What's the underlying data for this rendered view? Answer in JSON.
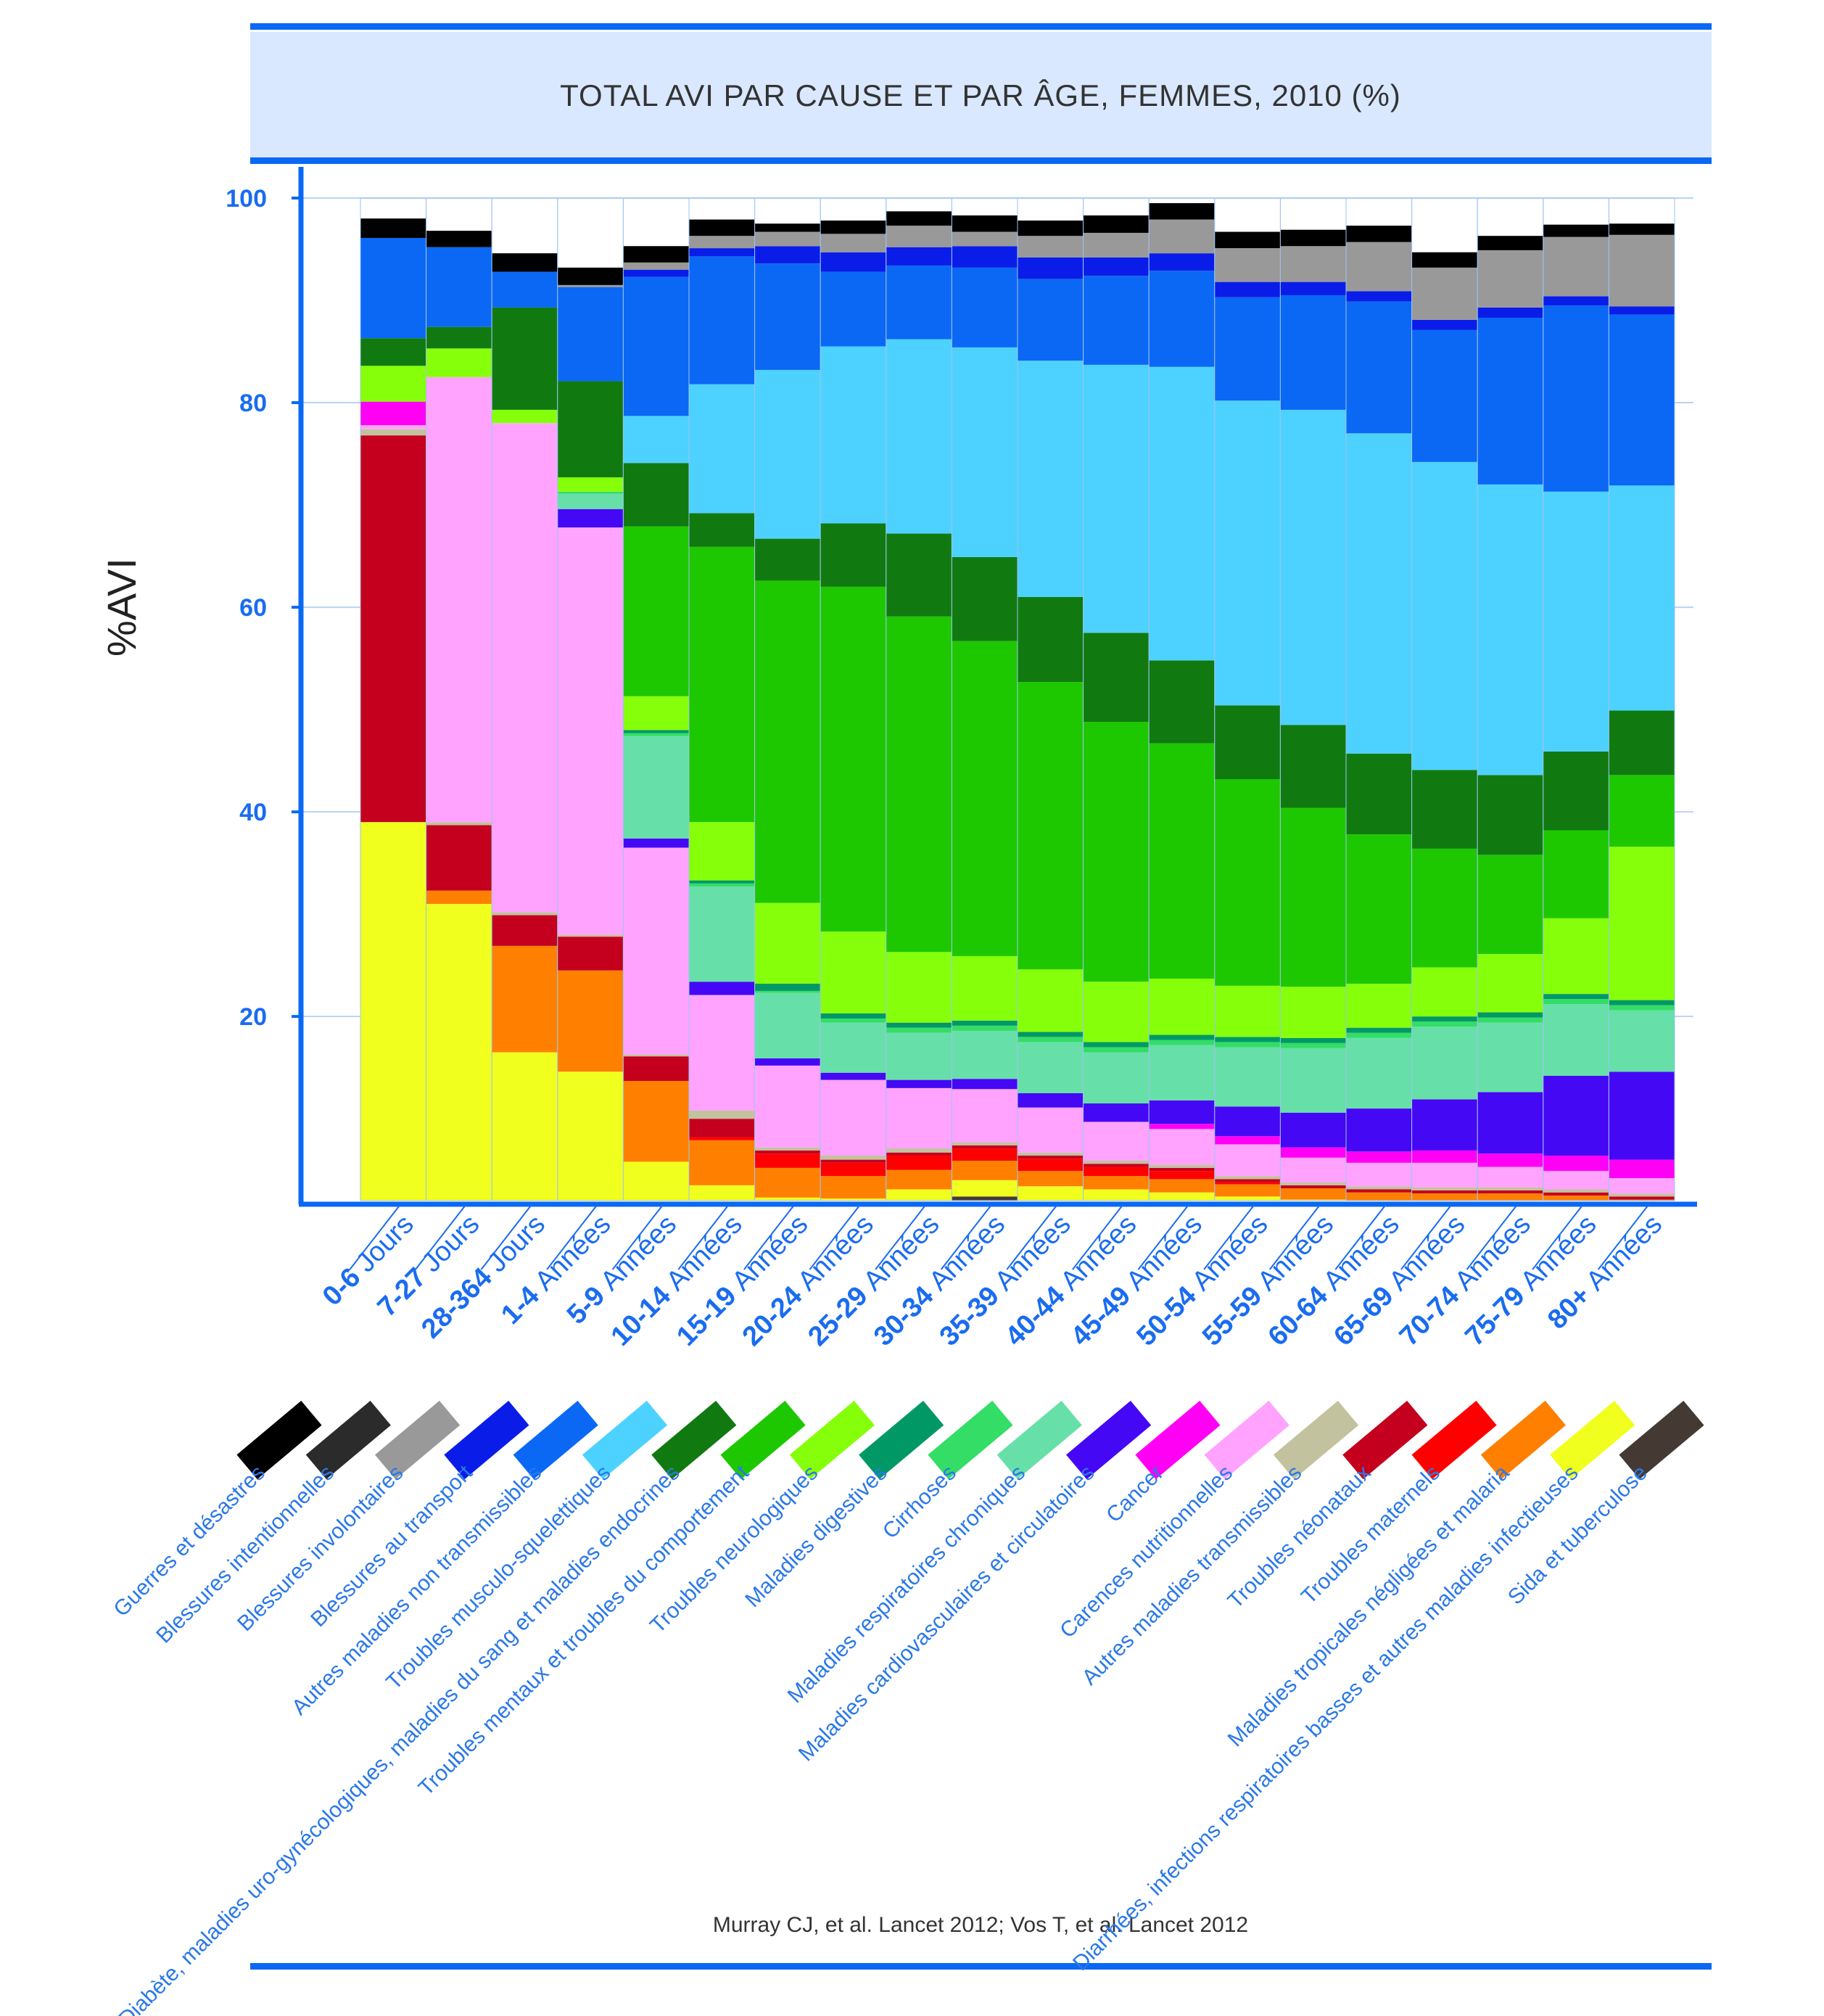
{
  "chart_data": {
    "type": "stacked-bar",
    "title": "TOTAL AVI PAR CAUSE ET PAR ÂGE, FEMMES, 2010 (%)",
    "ylabel": "%AVI",
    "xlabel": "",
    "ylim": [
      2,
      100
    ],
    "yticks": [
      20,
      40,
      60,
      80,
      100
    ],
    "grid": true,
    "source": "Murray CJ, et al. Lancet 2012; Vos T, et al. Lancet 2012",
    "categories": [
      {
        "num": "0-6",
        "unit": "Jours"
      },
      {
        "num": "7-27",
        "unit": "Jours"
      },
      {
        "num": "28-364",
        "unit": "Jours"
      },
      {
        "num": "1-4",
        "unit": "Années"
      },
      {
        "num": "5-9",
        "unit": "Années"
      },
      {
        "num": "10-14",
        "unit": "Années"
      },
      {
        "num": "15-19",
        "unit": "Années"
      },
      {
        "num": "20-24",
        "unit": "Années"
      },
      {
        "num": "25-29",
        "unit": "Années"
      },
      {
        "num": "30-34",
        "unit": "Années"
      },
      {
        "num": "35-39",
        "unit": "Années"
      },
      {
        "num": "40-44",
        "unit": "Années"
      },
      {
        "num": "45-49",
        "unit": "Années"
      },
      {
        "num": "50-54",
        "unit": "Années"
      },
      {
        "num": "55-59",
        "unit": "Années"
      },
      {
        "num": "60-64",
        "unit": "Années"
      },
      {
        "num": "65-69",
        "unit": "Années"
      },
      {
        "num": "70-74",
        "unit": "Années"
      },
      {
        "num": "75-79",
        "unit": "Années"
      },
      {
        "num": "80+",
        "unit": "Années"
      }
    ],
    "legend": [
      {
        "name": "Guerres et désastres",
        "color": "#000000"
      },
      {
        "name": "Blessures intentionnelles",
        "color": "#2b2b2b"
      },
      {
        "name": "Blessures involontaires",
        "color": "#999999"
      },
      {
        "name": "Blessures au transport",
        "color": "#0a1de8"
      },
      {
        "name": "Autres maladies non transmissibles",
        "color": "#0a68f5"
      },
      {
        "name": "Troubles musculo-squelettiques",
        "color": "#4dd2ff"
      },
      {
        "name": "Diabète, maladies uro-gynécologiques, maladies du sang et maladies endocrines",
        "color": "#107a10"
      },
      {
        "name": "Troubles mentaux et troubles du comportement",
        "color": "#1ec800"
      },
      {
        "name": "Troubles neurologiques",
        "color": "#86ff0a"
      },
      {
        "name": "Maladies digestives",
        "color": "#009966"
      },
      {
        "name": "Cirrhoses",
        "color": "#33dd66"
      },
      {
        "name": "Maladies respiratoires chroniques",
        "color": "#66e0a8"
      },
      {
        "name": "Maladies cardiovasculaires et circulatoires",
        "color": "#4408f5"
      },
      {
        "name": "Cancer",
        "color": "#ff00f5"
      },
      {
        "name": "Carences nutritionnelles",
        "color": "#ffa3ff"
      },
      {
        "name": "Autres maladies transmissibles",
        "color": "#c2c29e"
      },
      {
        "name": "Troubles néonataux",
        "color": "#c4001e"
      },
      {
        "name": "Troubles maternels",
        "color": "#ff0000"
      },
      {
        "name": "Maladies tropicales négligées et malaria",
        "color": "#ff8000"
      },
      {
        "name": "Diarrhées, infections respiratoires basses et autres maladies infectieuses",
        "color": "#f0ff1e"
      },
      {
        "name": "Sida et tuberculose",
        "color": "#443a33"
      }
    ],
    "stack_order_bottom_to_top": [
      "Sida et tuberculose",
      "Diarrhées, infections respiratoires basses et autres maladies infectieuses",
      "Maladies tropicales négligées et malaria",
      "Troubles maternels",
      "Troubles néonataux",
      "Autres maladies transmissibles",
      "Carences nutritionnelles",
      "Cancer",
      "Maladies cardiovasculaires et circulatoires",
      "Maladies respiratoires chroniques",
      "Cirrhoses",
      "Maladies digestives",
      "Troubles neurologiques",
      "Troubles mentaux et troubles du comportement",
      "Diabète, maladies uro-gynécologiques, maladies du sang et maladies endocrines",
      "Troubles musculo-squelettiques",
      "Autres maladies non transmissibles",
      "Blessures au transport",
      "Blessures involontaires",
      "Blessures intentionnelles",
      "Guerres et désastres"
    ],
    "series": [
      {
        "name": "Sida et tuberculose",
        "values": [
          0.1,
          0.1,
          0.3,
          0.2,
          0.3,
          0.3,
          0.5,
          0.5,
          1.5,
          2.4,
          1.8,
          1.5,
          1.0,
          0.6,
          0.5,
          0.4,
          0.3,
          0.3,
          0.3,
          0.3
        ]
      },
      {
        "name": "Diarrhées, infections respiratoires basses et autres maladies infectieuses",
        "values": [
          38.9,
          30.9,
          16.2,
          14.4,
          5.5,
          3.2,
          1.8,
          1.7,
          1.6,
          1.6,
          1.6,
          1.6,
          1.8,
          1.8,
          1.6,
          1.4,
          1.3,
          1.4,
          1.5,
          1.3
        ]
      },
      {
        "name": "Maladies tropicales négligées et malaria",
        "values": [
          0,
          1.3,
          10.4,
          9.9,
          7.9,
          4.4,
          2.9,
          2.2,
          1.9,
          1.9,
          1.5,
          1.3,
          1.3,
          1.2,
          1.1,
          1.0,
          1.1,
          1.0,
          0.7,
          0.5
        ]
      },
      {
        "name": "Troubles maternels",
        "values": [
          0,
          0,
          0,
          0,
          0,
          0.3,
          1.4,
          1.3,
          1.4,
          1.2,
          1.2,
          0.9,
          0.8,
          0.2,
          0,
          0,
          0,
          0,
          0,
          0
        ]
      },
      {
        "name": "Troubles néonataux",
        "values": [
          37.8,
          6.4,
          3.0,
          3.3,
          2.4,
          1.8,
          0.3,
          0.3,
          0.3,
          0.3,
          0.3,
          0.3,
          0.3,
          0.3,
          0.3,
          0.3,
          0.3,
          0.3,
          0.3,
          0.3
        ]
      },
      {
        "name": "Autres maladies transmissibles",
        "values": [
          0.6,
          0.3,
          0.3,
          0.2,
          0.2,
          0.8,
          0.3,
          0.4,
          0.4,
          0.3,
          0.3,
          0.3,
          0.3,
          0.3,
          0.3,
          0.3,
          0.3,
          0.3,
          0.3,
          0.3
        ]
      },
      {
        "name": "Carences nutritionnelles",
        "values": [
          0.4,
          43.5,
          47.8,
          39.8,
          20.2,
          11.3,
          8.0,
          7.4,
          5.9,
          5.2,
          4.4,
          3.8,
          3.5,
          3.1,
          2.4,
          2.3,
          2.4,
          2.0,
          1.8,
          1.5
        ]
      },
      {
        "name": "Cancer",
        "values": [
          2.3,
          0,
          0,
          0,
          0,
          0,
          0,
          0,
          0,
          0,
          0,
          0,
          0.5,
          0.8,
          1.0,
          1.1,
          1.2,
          1.3,
          1.5,
          1.8
        ]
      },
      {
        "name": "Maladies cardiovasculaires et circulatoires",
        "values": [
          0,
          0,
          0,
          1.8,
          0.9,
          1.3,
          0.7,
          0.7,
          0.8,
          1.0,
          1.4,
          1.8,
          2.3,
          2.9,
          3.4,
          4.2,
          5.0,
          6.0,
          7.8,
          8.6
        ]
      },
      {
        "name": "Maladies respiratoires chroniques",
        "values": [
          0,
          0,
          0,
          1.5,
          10.0,
          9.3,
          6.4,
          4.9,
          4.6,
          4.7,
          5.0,
          5.0,
          5.4,
          5.8,
          6.3,
          6.9,
          7.1,
          6.8,
          7.0,
          6.0
        ]
      },
      {
        "name": "Cirrhoses",
        "values": [
          0,
          0,
          0,
          0.2,
          0.3,
          0.3,
          0.2,
          0.4,
          0.5,
          0.5,
          0.5,
          0.5,
          0.5,
          0.5,
          0.5,
          0.5,
          0.5,
          0.5,
          0.5,
          0.5
        ]
      },
      {
        "name": "Maladies digestives",
        "values": [
          0,
          0,
          0,
          0,
          0.3,
          0.3,
          0.7,
          0.5,
          0.5,
          0.5,
          0.5,
          0.5,
          0.5,
          0.5,
          0.5,
          0.5,
          0.5,
          0.5,
          0.5,
          0.5
        ]
      },
      {
        "name": "Troubles neurologiques",
        "values": [
          3.5,
          2.8,
          1.3,
          1.4,
          3.3,
          5.7,
          7.9,
          8.0,
          6.9,
          6.3,
          6.1,
          5.9,
          5.5,
          5.0,
          5.0,
          4.3,
          4.8,
          5.7,
          7.4,
          15.0
        ]
      },
      {
        "name": "Troubles mentaux et troubles du comportement",
        "values": [
          0,
          0,
          0,
          0,
          16.6,
          26.9,
          31.5,
          33.7,
          32.8,
          30.8,
          28.1,
          25.4,
          23.0,
          20.2,
          17.5,
          14.6,
          11.6,
          9.7,
          8.6,
          7.0
        ]
      },
      {
        "name": "Diabète, maladies uro-gynécologiques, maladies du sang et maladies endocrines",
        "values": [
          2.7,
          2.1,
          10.0,
          9.4,
          6.2,
          3.3,
          4.1,
          6.2,
          8.1,
          8.2,
          8.3,
          8.7,
          8.1,
          7.2,
          8.1,
          7.9,
          7.7,
          7.8,
          7.7,
          6.3
        ]
      },
      {
        "name": "Troubles musculo-squelettiques",
        "values": [
          0,
          0,
          0,
          0,
          4.6,
          12.6,
          16.5,
          17.3,
          19.0,
          20.5,
          23.1,
          26.2,
          28.7,
          29.8,
          30.8,
          31.3,
          30.1,
          28.4,
          25.4,
          22.0
        ]
      },
      {
        "name": "Autres maladies non transmissibles",
        "values": [
          9.8,
          7.8,
          3.5,
          9.2,
          13.6,
          12.5,
          10.4,
          7.3,
          7.2,
          7.8,
          8.0,
          8.7,
          9.4,
          10.1,
          11.2,
          12.9,
          12.9,
          16.3,
          18.2,
          16.7
        ]
      },
      {
        "name": "Blessures au transport",
        "values": [
          0,
          0,
          0,
          0,
          0.7,
          0.8,
          1.7,
          1.9,
          1.8,
          2.1,
          2.1,
          1.8,
          1.7,
          1.5,
          1.3,
          1.0,
          1.0,
          1.0,
          0.9,
          0.8
        ]
      },
      {
        "name": "Blessures involontaires",
        "values": [
          0,
          0,
          0,
          0.2,
          0.7,
          1.2,
          1.4,
          1.8,
          2.1,
          1.4,
          2.1,
          2.4,
          3.3,
          3.3,
          3.5,
          4.8,
          5.1,
          5.6,
          5.8,
          7.0
        ]
      },
      {
        "name": "Blessures intentionnelles",
        "values": [
          0,
          0,
          0,
          0,
          0,
          0,
          0,
          0,
          0,
          0,
          0,
          0,
          0,
          0,
          0,
          0,
          0,
          0,
          0,
          0
        ]
      },
      {
        "name": "Guerres et désastres",
        "values": [
          1.9,
          1.6,
          1.8,
          1.7,
          1.6,
          1.6,
          0.8,
          1.3,
          1.4,
          1.6,
          1.5,
          1.7,
          1.6,
          1.6,
          1.6,
          1.6,
          1.5,
          1.4,
          1.2,
          1.1
        ]
      }
    ]
  }
}
